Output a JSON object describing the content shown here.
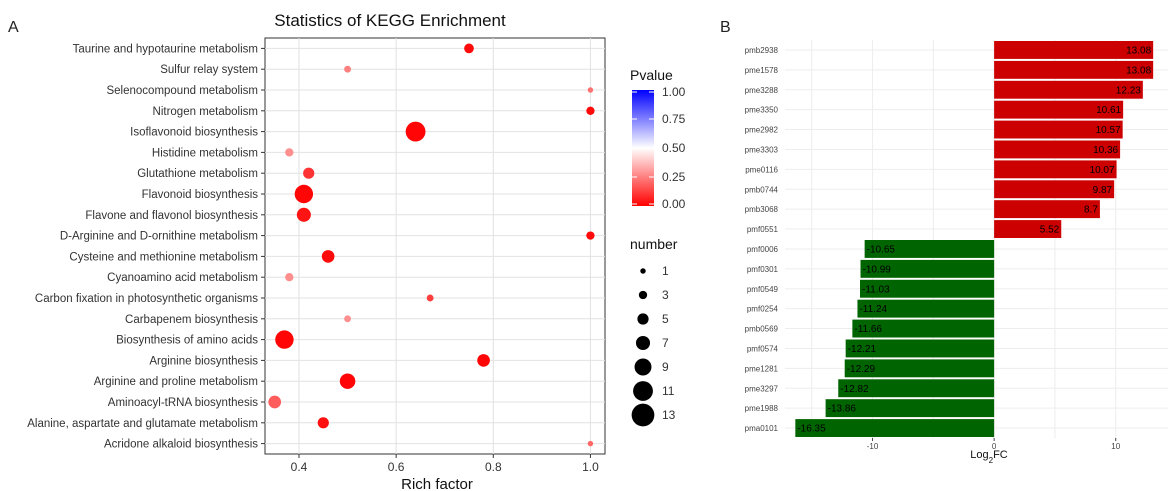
{
  "panels": {
    "a": "A",
    "b": "B"
  },
  "chart_data": [
    {
      "type": "scatter",
      "title": "Statistics of KEGG Enrichment",
      "xlabel": "Rich factor",
      "ylabel": "",
      "xlim": [
        0.33,
        1.03
      ],
      "xticks": [
        0.4,
        0.6,
        0.8,
        1.0
      ],
      "xtick_labels": [
        "0.4",
        "0.6",
        "0.8",
        "1.0"
      ],
      "grid": true,
      "colors": {
        "high_pvalue": "#0000ff",
        "mid_pvalue": "#ffffff",
        "low_pvalue": "#ff0000",
        "panel_bg": "#ebebeb"
      },
      "categories": [
        "Taurine and hypotaurine metabolism",
        "Sulfur relay system",
        "Selenocompound metabolism",
        "Nitrogen metabolism",
        "Isoflavonoid biosynthesis",
        "Histidine metabolism",
        "Glutathione metabolism",
        "Flavonoid biosynthesis",
        "Flavone and flavonol biosynthesis",
        "D-Arginine and D-ornithine metabolism",
        "Cysteine and methionine metabolism",
        "Cyanoamino acid metabolism",
        "Carbon fixation in photosynthetic organisms",
        "Carbapenem biosynthesis",
        "Biosynthesis of amino acids",
        "Arginine biosynthesis",
        "Arginine and proline metabolism",
        "Aminoacyl-tRNA biosynthesis",
        "Alanine, aspartate and glutamate metabolism",
        "Acridone alkaloid biosynthesis"
      ],
      "points": [
        {
          "x": 0.75,
          "number": 4,
          "pvalue": 0.02
        },
        {
          "x": 0.5,
          "number": 2,
          "pvalue": 0.25
        },
        {
          "x": 1.0,
          "number": 1,
          "pvalue": 0.22
        },
        {
          "x": 1.0,
          "number": 3,
          "pvalue": 0.02
        },
        {
          "x": 0.64,
          "number": 11,
          "pvalue": 0.01
        },
        {
          "x": 0.38,
          "number": 3,
          "pvalue": 0.28
        },
        {
          "x": 0.42,
          "number": 5,
          "pvalue": 0.1
        },
        {
          "x": 0.41,
          "number": 10,
          "pvalue": 0.01
        },
        {
          "x": 0.41,
          "number": 7,
          "pvalue": 0.04
        },
        {
          "x": 1.0,
          "number": 3,
          "pvalue": 0.02
        },
        {
          "x": 0.46,
          "number": 6,
          "pvalue": 0.02
        },
        {
          "x": 0.38,
          "number": 3,
          "pvalue": 0.28
        },
        {
          "x": 0.67,
          "number": 2,
          "pvalue": 0.12
        },
        {
          "x": 0.5,
          "number": 2,
          "pvalue": 0.28
        },
        {
          "x": 0.37,
          "number": 10,
          "pvalue": 0.01
        },
        {
          "x": 0.78,
          "number": 6,
          "pvalue": 0.01
        },
        {
          "x": 0.5,
          "number": 8,
          "pvalue": 0.01
        },
        {
          "x": 0.35,
          "number": 6,
          "pvalue": 0.18
        },
        {
          "x": 0.45,
          "number": 5,
          "pvalue": 0.03
        },
        {
          "x": 1.0,
          "number": 1,
          "pvalue": 0.2
        }
      ],
      "legend": {
        "placement": "right",
        "color_title": "Pvalue",
        "color_ticks": [
          1.0,
          0.75,
          0.5,
          0.25,
          0.0
        ],
        "color_tick_labels": [
          "1.00",
          "0.75",
          "0.50",
          "0.25",
          "0.00"
        ],
        "size_title": "number",
        "size_values": [
          1,
          3,
          5,
          7,
          9,
          11,
          13
        ],
        "size_labels": [
          "1",
          "3",
          "5",
          "7",
          "9",
          "11",
          "13"
        ]
      }
    },
    {
      "type": "bar",
      "orientation": "horizontal",
      "title": "",
      "xlabel_main": "Log",
      "xlabel_sub": "2",
      "xlabel_tail": "FC",
      "ylabel": "",
      "xlim": [
        -17.2,
        14.3
      ],
      "xticks": [
        -10,
        0,
        10
      ],
      "xtick_labels": [
        "-10",
        "0",
        "10"
      ],
      "grid": true,
      "colors": {
        "positive": "#cc0000",
        "negative": "#006400"
      },
      "categories": [
        "pmb2938",
        "pme1578",
        "pme3288",
        "pme3350",
        "pme2982",
        "pme3303",
        "pme0116",
        "pmb0744",
        "pmb3068",
        "pmf0551",
        "pmf0006",
        "pmf0301",
        "pmf0549",
        "pmf0254",
        "pmb0569",
        "pmf0574",
        "pme1281",
        "pme3297",
        "pme1988",
        "pma0101"
      ],
      "values": [
        13.08,
        13.08,
        12.23,
        10.61,
        10.57,
        10.36,
        10.07,
        9.87,
        8.7,
        5.52,
        -10.65,
        -10.99,
        -11.03,
        -11.24,
        -11.66,
        -12.21,
        -12.29,
        -12.82,
        -13.86,
        -16.35
      ],
      "value_labels": [
        "13.08",
        "13.08",
        "12.23",
        "10.61",
        "10.57",
        "10.36",
        "10.07",
        "9.87",
        "8.7",
        "5.52",
        "-10.65",
        "-10.99",
        "-11.03",
        "-11.24",
        "-11.66",
        "-12.21",
        "-12.29",
        "-12.82",
        "-13.86",
        "-16.35"
      ]
    }
  ]
}
